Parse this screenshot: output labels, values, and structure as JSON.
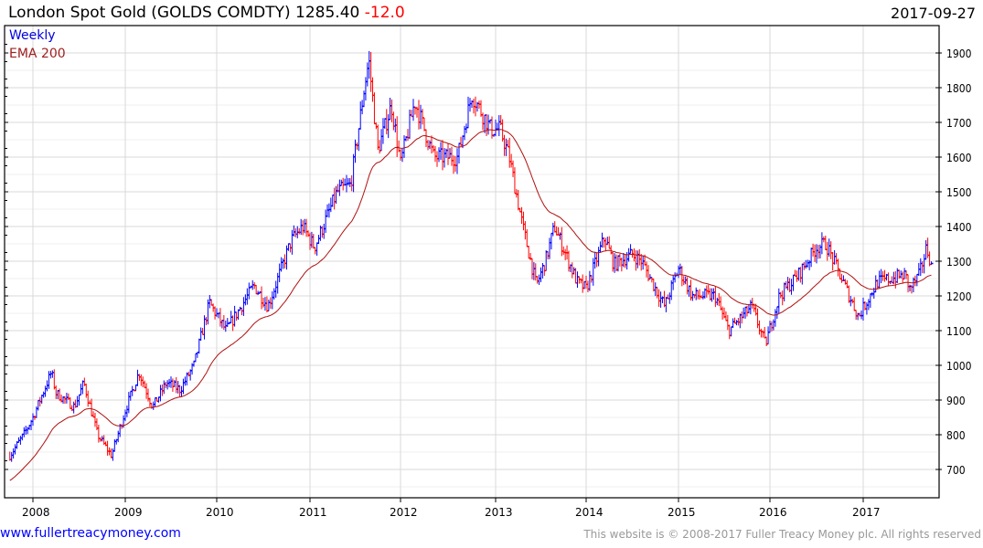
{
  "header": {
    "name": "London Spot Gold (GOLDS COMDTY)",
    "price": "1285.40",
    "change": "-12.0",
    "date": "2017-09-27"
  },
  "legend": {
    "period": "Weekly",
    "indicator": "EMA 200"
  },
  "footer": {
    "site": "www.fullertreacymoney.com",
    "copyright": "This website is © 2008-2017 Fuller Treacy Money plc. All rights reserved"
  },
  "colors": {
    "up": "#0000ff",
    "down": "#ff0000",
    "ema": "#b01010"
  },
  "chart_data": {
    "type": "bar",
    "title": "London Spot Gold (GOLDS COMDTY)",
    "ylim": [
      620,
      1950
    ],
    "y_ticks": [
      700,
      800,
      900,
      1000,
      1100,
      1200,
      1300,
      1400,
      1500,
      1600,
      1700,
      1800,
      1900
    ],
    "x_ticks": [
      "2008",
      "2009",
      "2010",
      "2011",
      "2012",
      "2013",
      "2014",
      "2015",
      "2016",
      "2017"
    ],
    "x_range": [
      2007.72,
      2017.84
    ],
    "ema_start": 665,
    "price_keypoints": [
      [
        2007.75,
        740
      ],
      [
        2007.9,
        800
      ],
      [
        2008.0,
        850
      ],
      [
        2008.2,
        980
      ],
      [
        2008.25,
        920
      ],
      [
        2008.45,
        880
      ],
      [
        2008.55,
        950
      ],
      [
        2008.7,
        800
      ],
      [
        2008.85,
        740
      ],
      [
        2009.0,
        870
      ],
      [
        2009.15,
        980
      ],
      [
        2009.3,
        880
      ],
      [
        2009.45,
        950
      ],
      [
        2009.6,
        930
      ],
      [
        2009.75,
        1000
      ],
      [
        2009.92,
        1180
      ],
      [
        2010.1,
        1100
      ],
      [
        2010.4,
        1230
      ],
      [
        2010.55,
        1170
      ],
      [
        2010.8,
        1360
      ],
      [
        2010.92,
        1400
      ],
      [
        2011.05,
        1340
      ],
      [
        2011.3,
        1500
      ],
      [
        2011.45,
        1520
      ],
      [
        2011.6,
        1800
      ],
      [
        2011.65,
        1880
      ],
      [
        2011.75,
        1620
      ],
      [
        2011.9,
        1750
      ],
      [
        2012.0,
        1580
      ],
      [
        2012.15,
        1760
      ],
      [
        2012.35,
        1600
      ],
      [
        2012.6,
        1600
      ],
      [
        2012.75,
        1780
      ],
      [
        2012.95,
        1680
      ],
      [
        2013.05,
        1680
      ],
      [
        2013.15,
        1600
      ],
      [
        2013.3,
        1400
      ],
      [
        2013.45,
        1230
      ],
      [
        2013.55,
        1300
      ],
      [
        2013.65,
        1400
      ],
      [
        2013.9,
        1240
      ],
      [
        2014.0,
        1220
      ],
      [
        2014.2,
        1370
      ],
      [
        2014.3,
        1290
      ],
      [
        2014.5,
        1320
      ],
      [
        2014.6,
        1300
      ],
      [
        2014.85,
        1170
      ],
      [
        2015.0,
        1280
      ],
      [
        2015.15,
        1200
      ],
      [
        2015.4,
        1200
      ],
      [
        2015.55,
        1100
      ],
      [
        2015.8,
        1170
      ],
      [
        2015.95,
        1060
      ],
      [
        2016.1,
        1200
      ],
      [
        2016.3,
        1260
      ],
      [
        2016.5,
        1340
      ],
      [
        2016.6,
        1350
      ],
      [
        2016.75,
        1260
      ],
      [
        2016.95,
        1140
      ],
      [
        2017.15,
        1240
      ],
      [
        2017.45,
        1260
      ],
      [
        2017.5,
        1220
      ],
      [
        2017.6,
        1260
      ],
      [
        2017.68,
        1340
      ],
      [
        2017.74,
        1285
      ]
    ]
  }
}
